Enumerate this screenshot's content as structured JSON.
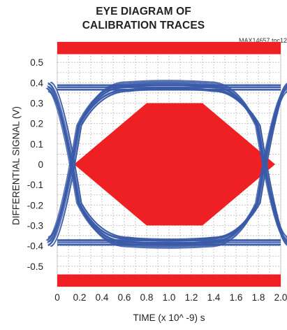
{
  "chart_data": {
    "type": "line",
    "title_line1": "EYE DIAGRAM OF",
    "title_line2": "CALIBRATION TRACES",
    "figure_code": "MAX14657 toc12",
    "xlabel": "TIME (x 10^ -9) s",
    "ylabel": "DIFFERENTIAL SIGNAL (V)",
    "xlim": [
      0,
      2.0
    ],
    "ylim": [
      -0.6,
      0.6
    ],
    "x_ticks": [
      "0",
      "0.2",
      "0.4",
      "0.6",
      "0.8",
      "1.0",
      "1.2",
      "1.4",
      "1.6",
      "1.8",
      "2.0"
    ],
    "x_tick_values": [
      0,
      0.2,
      0.4,
      0.6,
      0.8,
      1.0,
      1.2,
      1.4,
      1.6,
      1.8,
      2.0
    ],
    "y_ticks": [
      "0.5",
      "0.4",
      "0.3",
      "0.2",
      "0.1",
      "0",
      "-0.1",
      "-0.2",
      "-0.3",
      "-0.4",
      "-0.5"
    ],
    "y_tick_values": [
      0.5,
      0.4,
      0.3,
      0.2,
      0.1,
      0,
      -0.1,
      -0.2,
      -0.3,
      -0.4,
      -0.5
    ],
    "grid": true,
    "colors": {
      "trace": "#3a5aa8",
      "mask": "#ee2024",
      "grid": "#bbbbbb"
    },
    "mask": {
      "upper_bar": [
        0.54,
        0.6
      ],
      "lower_bar": [
        -0.6,
        -0.54
      ],
      "hexagon": [
        [
          0.15,
          0
        ],
        [
          0.8,
          0.3
        ],
        [
          1.3,
          0.3
        ],
        [
          1.95,
          0
        ],
        [
          1.3,
          -0.3
        ],
        [
          0.8,
          -0.3
        ]
      ]
    },
    "eye": {
      "high_level": 0.38,
      "low_level": -0.38,
      "crossings": [
        0.02,
        1.97
      ],
      "rise_time": 0.5
    }
  }
}
